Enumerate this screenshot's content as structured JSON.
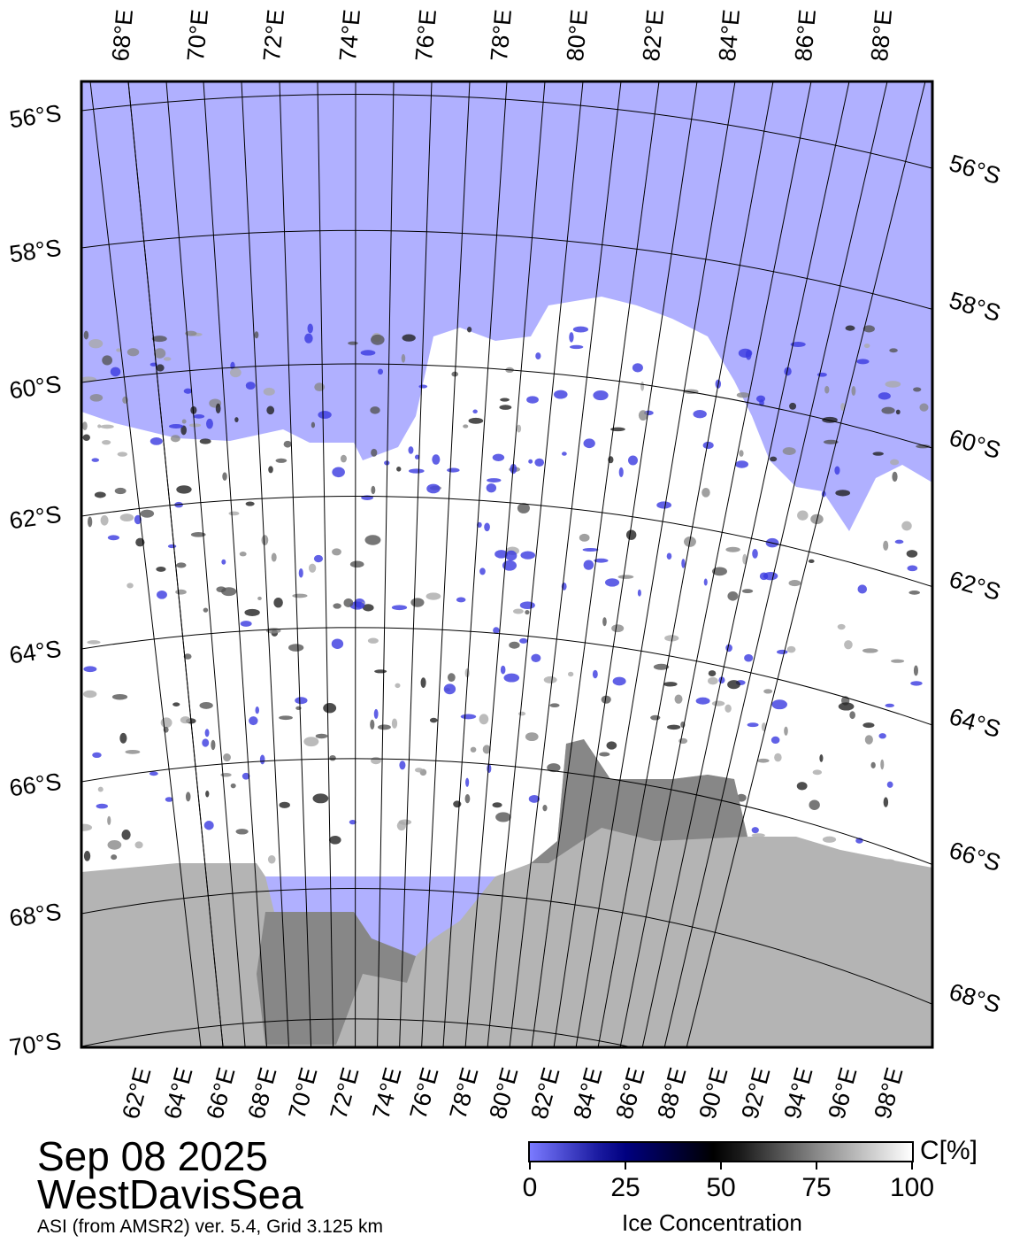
{
  "map": {
    "colors": {
      "ocean": "#b0b0ff",
      "ice": "#ffffff",
      "land": "#b4b4b4",
      "land_dark": "#878787",
      "low_ice": "#3a3ae0"
    },
    "top_lon_labels": [
      "68°E",
      "70°E",
      "72°E",
      "74°E",
      "76°E",
      "78°E",
      "80°E",
      "82°E",
      "84°E",
      "86°E",
      "88°E"
    ],
    "bottom_lon_labels": [
      "62°E",
      "64°E",
      "66°E",
      "68°E",
      "70°E",
      "72°E",
      "74°E",
      "76°E",
      "78°E",
      "80°E",
      "82°E",
      "84°E",
      "86°E",
      "88°E",
      "90°E",
      "92°E",
      "94°E",
      "96°E",
      "98°E"
    ],
    "left_lat_labels": [
      "56°S",
      "58°S",
      "60°S",
      "62°S",
      "64°S",
      "66°S",
      "68°S",
      "70°S"
    ],
    "right_lat_labels": [
      "56°S",
      "58°S",
      "60°S",
      "62°S",
      "64°S",
      "66°S",
      "68°S"
    ]
  },
  "title": {
    "date": "Sep 08 2025",
    "region": "WestDavisSea",
    "source": "ASI (from AMSR2) ver. 5.4,  Grid 3.125 km"
  },
  "legend": {
    "unit": "C[%]",
    "ticks": [
      "0",
      "25",
      "50",
      "75",
      "100"
    ],
    "label": "Ice Concentration"
  }
}
